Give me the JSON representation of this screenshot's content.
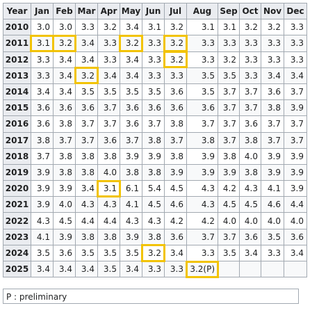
{
  "table": {
    "headers": [
      "Year",
      "Jan",
      "Feb",
      "Mar",
      "Apr",
      "May",
      "Jun",
      "Jul",
      "Aug",
      "Sep",
      "Oct",
      "Nov",
      "Dec"
    ],
    "rows": [
      {
        "year": "2010",
        "values": [
          "3.0",
          "3.0",
          "3.3",
          "3.2",
          "3.4",
          "3.1",
          "3.2",
          "3.1",
          "3.1",
          "3.2",
          "3.2",
          "3.3"
        ]
      },
      {
        "year": "2011",
        "values": [
          "3.1",
          "3.2",
          "3.4",
          "3.3",
          "3.2",
          "3.3",
          "3.2",
          "3.3",
          "3.3",
          "3.3",
          "3.3",
          "3.3"
        ]
      },
      {
        "year": "2012",
        "values": [
          "3.3",
          "3.4",
          "3.4",
          "3.3",
          "3.4",
          "3.3",
          "3.2",
          "3.3",
          "3.2",
          "3.3",
          "3.3",
          "3.3"
        ]
      },
      {
        "year": "2013",
        "values": [
          "3.3",
          "3.4",
          "3.2",
          "3.4",
          "3.4",
          "3.3",
          "3.3",
          "3.5",
          "3.5",
          "3.3",
          "3.4",
          "3.4"
        ]
      },
      {
        "year": "2014",
        "values": [
          "3.4",
          "3.4",
          "3.5",
          "3.5",
          "3.5",
          "3.5",
          "3.6",
          "3.5",
          "3.7",
          "3.7",
          "3.6",
          "3.7"
        ]
      },
      {
        "year": "2015",
        "values": [
          "3.6",
          "3.6",
          "3.6",
          "3.7",
          "3.6",
          "3.6",
          "3.6",
          "3.6",
          "3.7",
          "3.7",
          "3.8",
          "3.9"
        ]
      },
      {
        "year": "2016",
        "values": [
          "3.6",
          "3.8",
          "3.7",
          "3.7",
          "3.6",
          "3.7",
          "3.8",
          "3.7",
          "3.7",
          "3.6",
          "3.7",
          "3.7"
        ]
      },
      {
        "year": "2017",
        "values": [
          "3.8",
          "3.7",
          "3.7",
          "3.6",
          "3.7",
          "3.8",
          "3.7",
          "3.8",
          "3.7",
          "3.8",
          "3.7",
          "3.7"
        ]
      },
      {
        "year": "2018",
        "values": [
          "3.7",
          "3.8",
          "3.8",
          "3.8",
          "3.9",
          "3.9",
          "3.8",
          "3.9",
          "3.8",
          "4.0",
          "3.9",
          "3.9"
        ]
      },
      {
        "year": "2019",
        "values": [
          "3.9",
          "3.8",
          "3.8",
          "4.0",
          "3.8",
          "3.8",
          "3.9",
          "3.9",
          "3.9",
          "3.8",
          "3.9",
          "3.9"
        ]
      },
      {
        "year": "2020",
        "values": [
          "3.9",
          "3.9",
          "3.4",
          "3.1",
          "6.1",
          "5.4",
          "4.5",
          "4.3",
          "4.2",
          "4.3",
          "4.1",
          "3.9"
        ]
      },
      {
        "year": "2021",
        "values": [
          "3.9",
          "4.0",
          "4.3",
          "4.3",
          "4.1",
          "4.5",
          "4.6",
          "4.3",
          "4.5",
          "4.5",
          "4.6",
          "4.4"
        ]
      },
      {
        "year": "2022",
        "values": [
          "4.3",
          "4.5",
          "4.4",
          "4.4",
          "4.3",
          "4.3",
          "4.2",
          "4.2",
          "4.0",
          "4.0",
          "4.0",
          "4.0"
        ]
      },
      {
        "year": "2023",
        "values": [
          "4.1",
          "3.9",
          "3.8",
          "3.8",
          "3.9",
          "3.8",
          "3.6",
          "3.7",
          "3.7",
          "3.6",
          "3.5",
          "3.6"
        ]
      },
      {
        "year": "2024",
        "values": [
          "3.5",
          "3.6",
          "3.5",
          "3.5",
          "3.5",
          "3.2",
          "3.4",
          "3.3",
          "3.5",
          "3.4",
          "3.3",
          "3.4"
        ]
      },
      {
        "year": "2025",
        "values": [
          "3.4",
          "3.4",
          "3.4",
          "3.5",
          "3.4",
          "3.3",
          "3.3",
          "3.2(P)",
          "",
          "",
          "",
          ""
        ]
      }
    ]
  },
  "footnote": "P : preliminary",
  "highlight_color": "#f2c300",
  "highlights": [
    {
      "year": "2011",
      "month": "Jan"
    },
    {
      "year": "2011",
      "month": "Feb"
    },
    {
      "year": "2011",
      "month": "May"
    },
    {
      "year": "2011",
      "month": "Jul"
    },
    {
      "year": "2012",
      "month": "Jul"
    },
    {
      "year": "2013",
      "month": "Mar"
    },
    {
      "year": "2020",
      "month": "Apr"
    },
    {
      "year": "2024",
      "month": "Jun"
    },
    {
      "year": "2025",
      "month": "Aug"
    }
  ]
}
